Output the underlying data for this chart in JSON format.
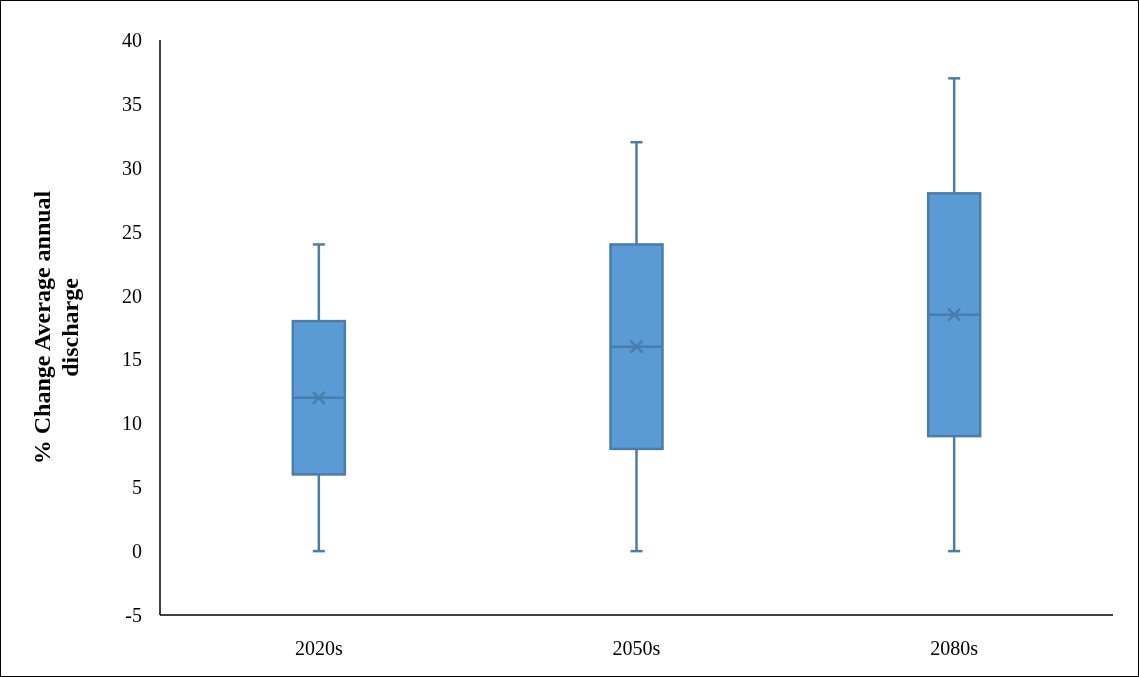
{
  "chart_data": {
    "type": "box",
    "ylabel": "% Change Average annual discharge",
    "categories": [
      "2020s",
      "2050s",
      "2080s"
    ],
    "color": "#5b9bd5",
    "marker": "cross",
    "boxes": [
      {
        "low": 0,
        "q1": 6,
        "median": 12,
        "q3": 18,
        "high": 24,
        "mean": 12
      },
      {
        "low": 0,
        "q1": 8,
        "median": 16,
        "q3": 24,
        "high": 32,
        "mean": 16
      },
      {
        "low": 0,
        "q1": 9,
        "median": 18.5,
        "q3": 28,
        "high": 37,
        "mean": 18.5
      }
    ],
    "ylim": [
      -5,
      40
    ],
    "yticks": [
      -5,
      0,
      5,
      10,
      15,
      20,
      25,
      30,
      35,
      40
    ]
  }
}
